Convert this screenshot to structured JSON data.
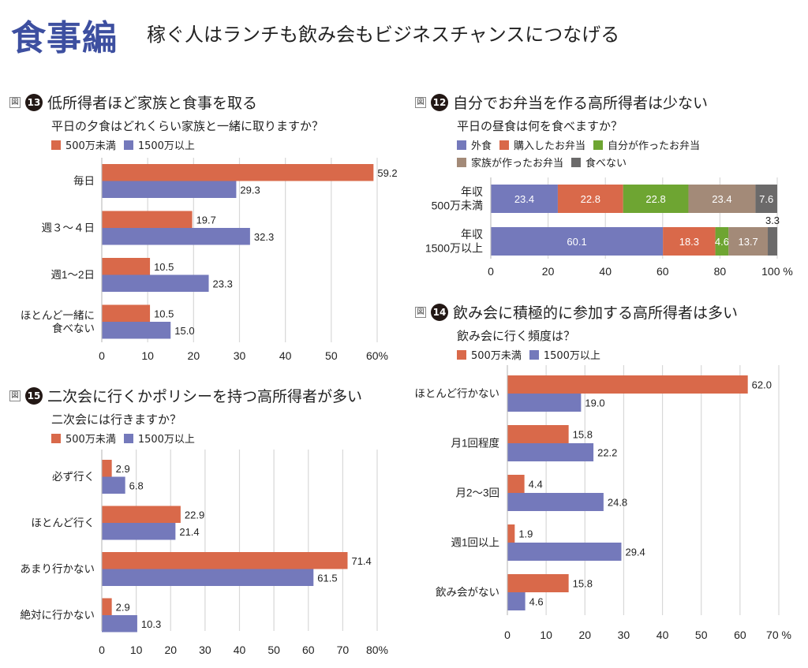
{
  "header": {
    "title": "食事編",
    "subtitle": "稼ぐ人はランチも飲み会もビジネスチャンスにつなげる"
  },
  "colors": {
    "title_blue": "#3d4fa0",
    "low_income": "#d9694a",
    "high_income": "#7479bb",
    "eat_out": "#7479bb",
    "bought_bento": "#d9694a",
    "own_bento": "#6ea532",
    "family_bento": "#a38a78",
    "no_lunch": "#6b6a6a",
    "grid": "#d8d8d8"
  },
  "figure_label": "図",
  "chart_data": [
    {
      "id": "fig13",
      "number": "13",
      "type": "bar",
      "orientation": "horizontal",
      "title": "低所得者ほど家族と食事を取る",
      "question": "平日の夕食はどれくらい家族と一緒に取りますか？",
      "categories": [
        "毎日",
        "週３～４日",
        "週1～2日",
        "ほとんど一緒に\n食べない"
      ],
      "series": [
        {
          "name": "500万未満",
          "color": "#d9694a",
          "values": [
            59.2,
            19.7,
            10.5,
            10.5
          ]
        },
        {
          "name": "1500万以上",
          "color": "#7479bb",
          "values": [
            29.3,
            32.3,
            23.3,
            15.0
          ]
        }
      ],
      "xlim": [
        0,
        60
      ],
      "xticks": [
        0,
        10,
        20,
        30,
        40,
        50,
        60
      ],
      "xtick_labels": [
        "0",
        "10",
        "20",
        "30",
        "40",
        "50",
        "60%"
      ],
      "grid": true,
      "legend_position": "top-left"
    },
    {
      "id": "fig12",
      "number": "12",
      "type": "bar",
      "orientation": "horizontal-stacked",
      "title": "自分でお弁当を作る高所得者は少ない",
      "question": "平日の昼食は何を食べますか？",
      "categories": [
        "年収\n500万未満",
        "年収\n1500万以上"
      ],
      "series": [
        {
          "name": "外食",
          "color": "#7479bb",
          "values": [
            23.4,
            60.1
          ]
        },
        {
          "name": "購入したお弁当",
          "color": "#d9694a",
          "values": [
            22.8,
            18.3
          ]
        },
        {
          "name": "自分が作ったお弁当",
          "color": "#6ea532",
          "values": [
            22.8,
            4.6
          ]
        },
        {
          "name": "家族が作ったお弁当",
          "color": "#a38a78",
          "values": [
            23.4,
            13.7
          ]
        },
        {
          "name": "食べない",
          "color": "#6b6a6a",
          "values": [
            7.6,
            3.3
          ]
        }
      ],
      "xlim": [
        0,
        100
      ],
      "xticks": [
        0,
        20,
        40,
        60,
        80,
        100
      ],
      "xtick_labels": [
        "0",
        "20",
        "40",
        "60",
        "80",
        "100 %"
      ],
      "grid": true,
      "legend_position": "top-left"
    },
    {
      "id": "fig14",
      "number": "14",
      "type": "bar",
      "orientation": "horizontal",
      "title": "飲み会に積極的に参加する高所得者は多い",
      "question": "飲み会に行く頻度は？",
      "categories": [
        "ほとんど行かない",
        "月1回程度",
        "月2～3回",
        "週1回以上",
        "飲み会がない"
      ],
      "series": [
        {
          "name": "500万未満",
          "color": "#d9694a",
          "values": [
            62.0,
            15.8,
            4.4,
            1.9,
            15.8
          ]
        },
        {
          "name": "1500万以上",
          "color": "#7479bb",
          "values": [
            19.0,
            22.2,
            24.8,
            29.4,
            4.6
          ]
        }
      ],
      "xlim": [
        0,
        70
      ],
      "xticks": [
        0,
        10,
        20,
        30,
        40,
        50,
        60,
        70
      ],
      "xtick_labels": [
        "0",
        "10",
        "20",
        "30",
        "40",
        "50",
        "60",
        "70 %"
      ],
      "grid": true,
      "legend_position": "top-left"
    },
    {
      "id": "fig15",
      "number": "15",
      "type": "bar",
      "orientation": "horizontal",
      "title": "二次会に行くかポリシーを持つ高所得者が多い",
      "question": "二次会には行きますか？",
      "categories": [
        "必ず行く",
        "ほとんど行く",
        "あまり行かない",
        "絶対に行かない"
      ],
      "series": [
        {
          "name": "500万未満",
          "color": "#d9694a",
          "values": [
            2.9,
            22.9,
            71.4,
            2.9
          ]
        },
        {
          "name": "1500万以上",
          "color": "#7479bb",
          "values": [
            6.8,
            21.4,
            61.5,
            10.3
          ]
        }
      ],
      "xlim": [
        0,
        80
      ],
      "xticks": [
        0,
        10,
        20,
        30,
        40,
        50,
        60,
        70,
        80
      ],
      "xtick_labels": [
        "0",
        "10",
        "20",
        "30",
        "40",
        "50",
        "60",
        "70",
        "80%"
      ],
      "grid": true,
      "legend_position": "top-left"
    }
  ]
}
